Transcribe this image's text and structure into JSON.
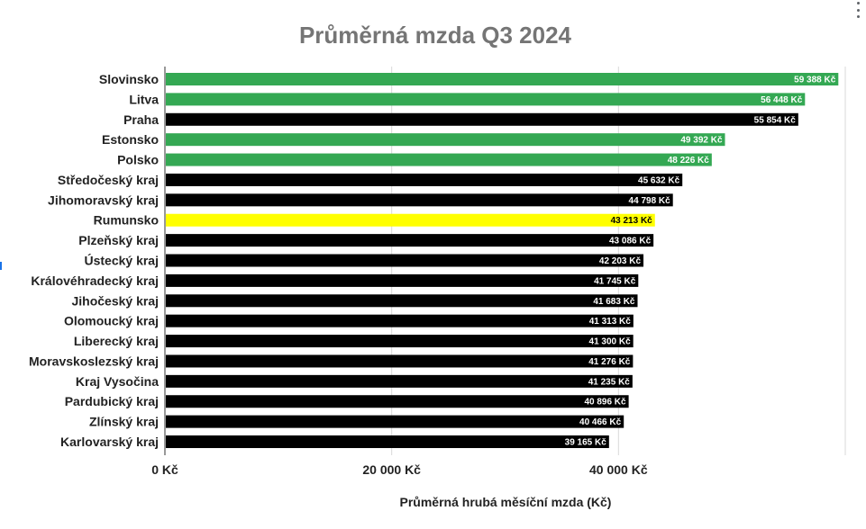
{
  "colors": {
    "highlight_green": "#34a853",
    "highlight_yellow": "#ffff00",
    "default_bar": "#000000",
    "gridline": "#d9d9d9"
  },
  "menu_icon": "more-vert-icon",
  "chart_data": {
    "type": "bar",
    "orientation": "horizontal",
    "title": "Průměrná mzda Q3 2024",
    "xlabel": "Průměrná hrubá měsíční mzda (Kč)",
    "ylabel": "",
    "xlim": [
      0,
      60000
    ],
    "xticks": [
      0,
      20000,
      40000
    ],
    "xtick_labels": [
      "0 Kč",
      "20 000 Kč",
      "40 000 Kč"
    ],
    "grid": "vertical",
    "legend": "none",
    "categories": [
      "Slovinsko",
      "Litva",
      "Praha",
      "Estonsko",
      "Polsko",
      "Středočeský kraj",
      "Jihomoravský kraj",
      "Rumunsko",
      "Plzeňský kraj",
      "Ústecký kraj",
      "Královéhradecký kraj",
      "Jihočeský kraj",
      "Olomoucký kraj",
      "Liberecký kraj",
      "Moravskoslezský kraj",
      "Kraj Vysočina",
      "Pardubický kraj",
      "Zlínský kraj",
      "Karlovarský kraj"
    ],
    "values": [
      59388,
      56448,
      55854,
      49392,
      48226,
      45632,
      44798,
      43213,
      43086,
      42203,
      41745,
      41683,
      41313,
      41300,
      41276,
      41235,
      40896,
      40466,
      39165
    ],
    "data_labels": [
      "59 388 Kč",
      "56 448 Kč",
      "55 854 Kč",
      "49 392 Kč",
      "48 226 Kč",
      "45 632 Kč",
      "44 798 Kč",
      "43 213 Kč",
      "43 086 Kč",
      "42 203 Kč",
      "41 745 Kč",
      "41 683 Kč",
      "41 313 Kč",
      "41 300 Kč",
      "41 276 Kč",
      "41 235 Kč",
      "40 896 Kč",
      "40 466 Kč",
      "39 165 Kč"
    ],
    "bar_colors": [
      "#34a853",
      "#34a853",
      "#000000",
      "#34a853",
      "#34a853",
      "#000000",
      "#000000",
      "#ffff00",
      "#000000",
      "#000000",
      "#000000",
      "#000000",
      "#000000",
      "#000000",
      "#000000",
      "#000000",
      "#000000",
      "#000000",
      "#000000"
    ],
    "label_colors": [
      "#ffffff",
      "#ffffff",
      "#ffffff",
      "#ffffff",
      "#ffffff",
      "#ffffff",
      "#ffffff",
      "#000000",
      "#ffffff",
      "#ffffff",
      "#ffffff",
      "#ffffff",
      "#ffffff",
      "#ffffff",
      "#ffffff",
      "#ffffff",
      "#ffffff",
      "#ffffff",
      "#ffffff"
    ]
  }
}
